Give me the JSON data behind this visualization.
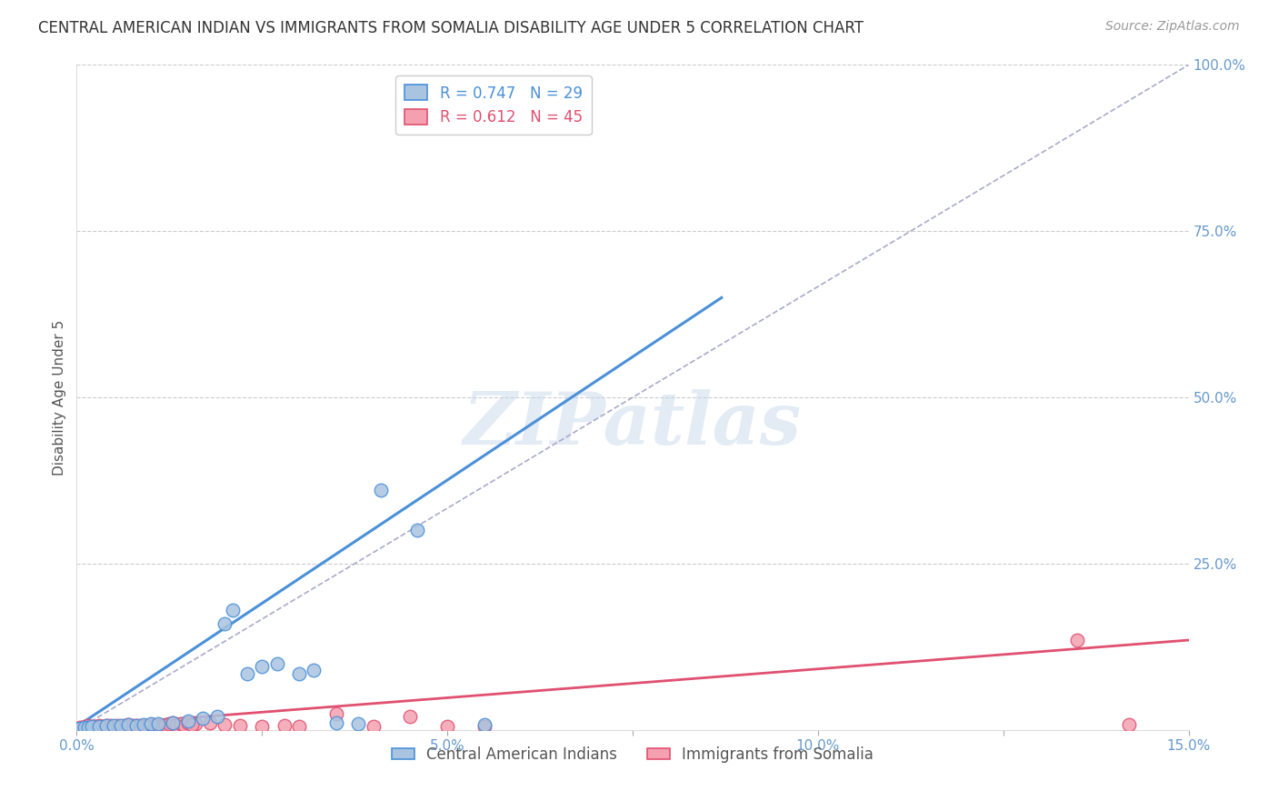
{
  "title": "CENTRAL AMERICAN INDIAN VS IMMIGRANTS FROM SOMALIA DISABILITY AGE UNDER 5 CORRELATION CHART",
  "source": "Source: ZipAtlas.com",
  "ylabel": "Disability Age Under 5",
  "xlabel_ticks": [
    0.0,
    2.5,
    5.0,
    7.5,
    10.0,
    12.5,
    15.0
  ],
  "xlabel_labels": [
    "0.0%",
    "",
    "5.0%",
    "",
    "10.0%",
    "",
    "15.0%"
  ],
  "ylabel_right_ticks": [
    0,
    25,
    50,
    75,
    100
  ],
  "ylabel_right_labels": [
    "",
    "25.0%",
    "50.0%",
    "75.0%",
    "100.0%"
  ],
  "xmin": 0.0,
  "xmax": 15.0,
  "ymin": 0.0,
  "ymax": 100.0,
  "blue_R": 0.747,
  "blue_N": 29,
  "pink_R": 0.612,
  "pink_N": 45,
  "blue_color": "#a8c4e0",
  "pink_color": "#f4a0b0",
  "blue_line_color": "#4a90d9",
  "pink_line_color": "#e05070",
  "blue_scatter": [
    [
      0.05,
      0.3
    ],
    [
      0.1,
      0.4
    ],
    [
      0.15,
      0.4
    ],
    [
      0.2,
      0.5
    ],
    [
      0.3,
      0.5
    ],
    [
      0.4,
      0.6
    ],
    [
      0.5,
      0.7
    ],
    [
      0.6,
      0.6
    ],
    [
      0.7,
      0.8
    ],
    [
      0.8,
      0.7
    ],
    [
      0.9,
      0.8
    ],
    [
      1.0,
      0.9
    ],
    [
      1.1,
      0.9
    ],
    [
      1.3,
      1.1
    ],
    [
      1.5,
      1.3
    ],
    [
      1.7,
      1.8
    ],
    [
      1.9,
      2.0
    ],
    [
      2.0,
      16.0
    ],
    [
      2.1,
      18.0
    ],
    [
      2.3,
      8.5
    ],
    [
      2.5,
      9.5
    ],
    [
      2.7,
      10.0
    ],
    [
      3.0,
      8.5
    ],
    [
      3.2,
      9.0
    ],
    [
      3.5,
      1.0
    ],
    [
      3.8,
      0.9
    ],
    [
      4.1,
      36.0
    ],
    [
      4.6,
      30.0
    ],
    [
      5.5,
      0.8
    ]
  ],
  "pink_scatter": [
    [
      0.05,
      0.4
    ],
    [
      0.1,
      0.5
    ],
    [
      0.15,
      0.6
    ],
    [
      0.2,
      0.4
    ],
    [
      0.25,
      0.5
    ],
    [
      0.3,
      0.6
    ],
    [
      0.35,
      0.5
    ],
    [
      0.4,
      0.7
    ],
    [
      0.45,
      0.6
    ],
    [
      0.5,
      0.5
    ],
    [
      0.55,
      0.6
    ],
    [
      0.6,
      0.5
    ],
    [
      0.65,
      0.6
    ],
    [
      0.7,
      0.8
    ],
    [
      0.75,
      0.6
    ],
    [
      0.8,
      0.7
    ],
    [
      0.85,
      0.6
    ],
    [
      0.9,
      0.7
    ],
    [
      0.95,
      0.6
    ],
    [
      1.0,
      0.8
    ],
    [
      1.05,
      0.7
    ],
    [
      1.1,
      0.6
    ],
    [
      1.15,
      0.7
    ],
    [
      1.2,
      0.8
    ],
    [
      1.25,
      0.9
    ],
    [
      1.3,
      1.0
    ],
    [
      1.35,
      0.8
    ],
    [
      1.4,
      0.9
    ],
    [
      1.45,
      0.7
    ],
    [
      1.5,
      1.0
    ],
    [
      1.6,
      0.9
    ],
    [
      1.8,
      1.1
    ],
    [
      2.0,
      0.8
    ],
    [
      2.2,
      0.7
    ],
    [
      2.5,
      0.5
    ],
    [
      2.8,
      0.6
    ],
    [
      3.0,
      0.5
    ],
    [
      3.5,
      2.5
    ],
    [
      4.0,
      0.5
    ],
    [
      4.5,
      2.0
    ],
    [
      5.0,
      0.5
    ],
    [
      5.5,
      0.5
    ],
    [
      13.5,
      13.5
    ],
    [
      14.2,
      0.8
    ],
    [
      1.55,
      0.8
    ]
  ],
  "blue_trend_x": [
    0.0,
    8.7
  ],
  "blue_trend_y": [
    0.5,
    65.0
  ],
  "pink_trend_x": [
    0.0,
    15.0
  ],
  "pink_trend_y": [
    0.5,
    13.5
  ],
  "ref_line_x": [
    0.0,
    15.0
  ],
  "ref_line_y": [
    0.0,
    100.0
  ],
  "watermark": "ZIPatlas",
  "background_color": "#ffffff",
  "grid_color": "#cccccc",
  "title_color": "#333333",
  "axis_color": "#6699cc",
  "legend_blue_label": "Central American Indians",
  "legend_pink_label": "Immigrants from Somalia"
}
